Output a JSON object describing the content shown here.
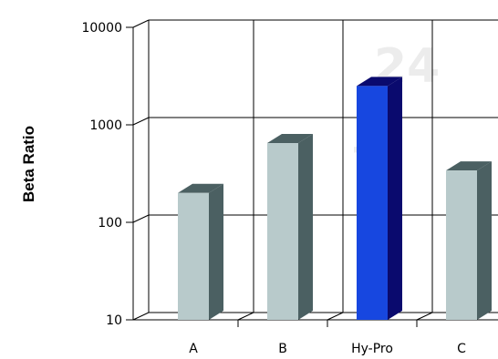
{
  "chart_data": {
    "type": "bar",
    "title": "",
    "xlabel": "",
    "ylabel": "Beta Ratio",
    "y_scale": "log",
    "ylim": [
      10,
      10000
    ],
    "y_ticks": [
      10,
      100,
      1000,
      10000
    ],
    "y_tick_labels": [
      "10",
      "100",
      "1000",
      "10000"
    ],
    "categories": [
      "A",
      "B",
      "Hy-Pro",
      "C"
    ],
    "values": [
      200,
      650,
      2500,
      340
    ],
    "bar_colors": [
      "#b8cacb",
      "#b8cacb",
      "#1747e0",
      "#b8cacb"
    ],
    "bar_side_colors": [
      "#4b6062",
      "#4b6062",
      "#0a0a6e",
      "#4b6062"
    ],
    "grid": true,
    "style": "3d"
  }
}
